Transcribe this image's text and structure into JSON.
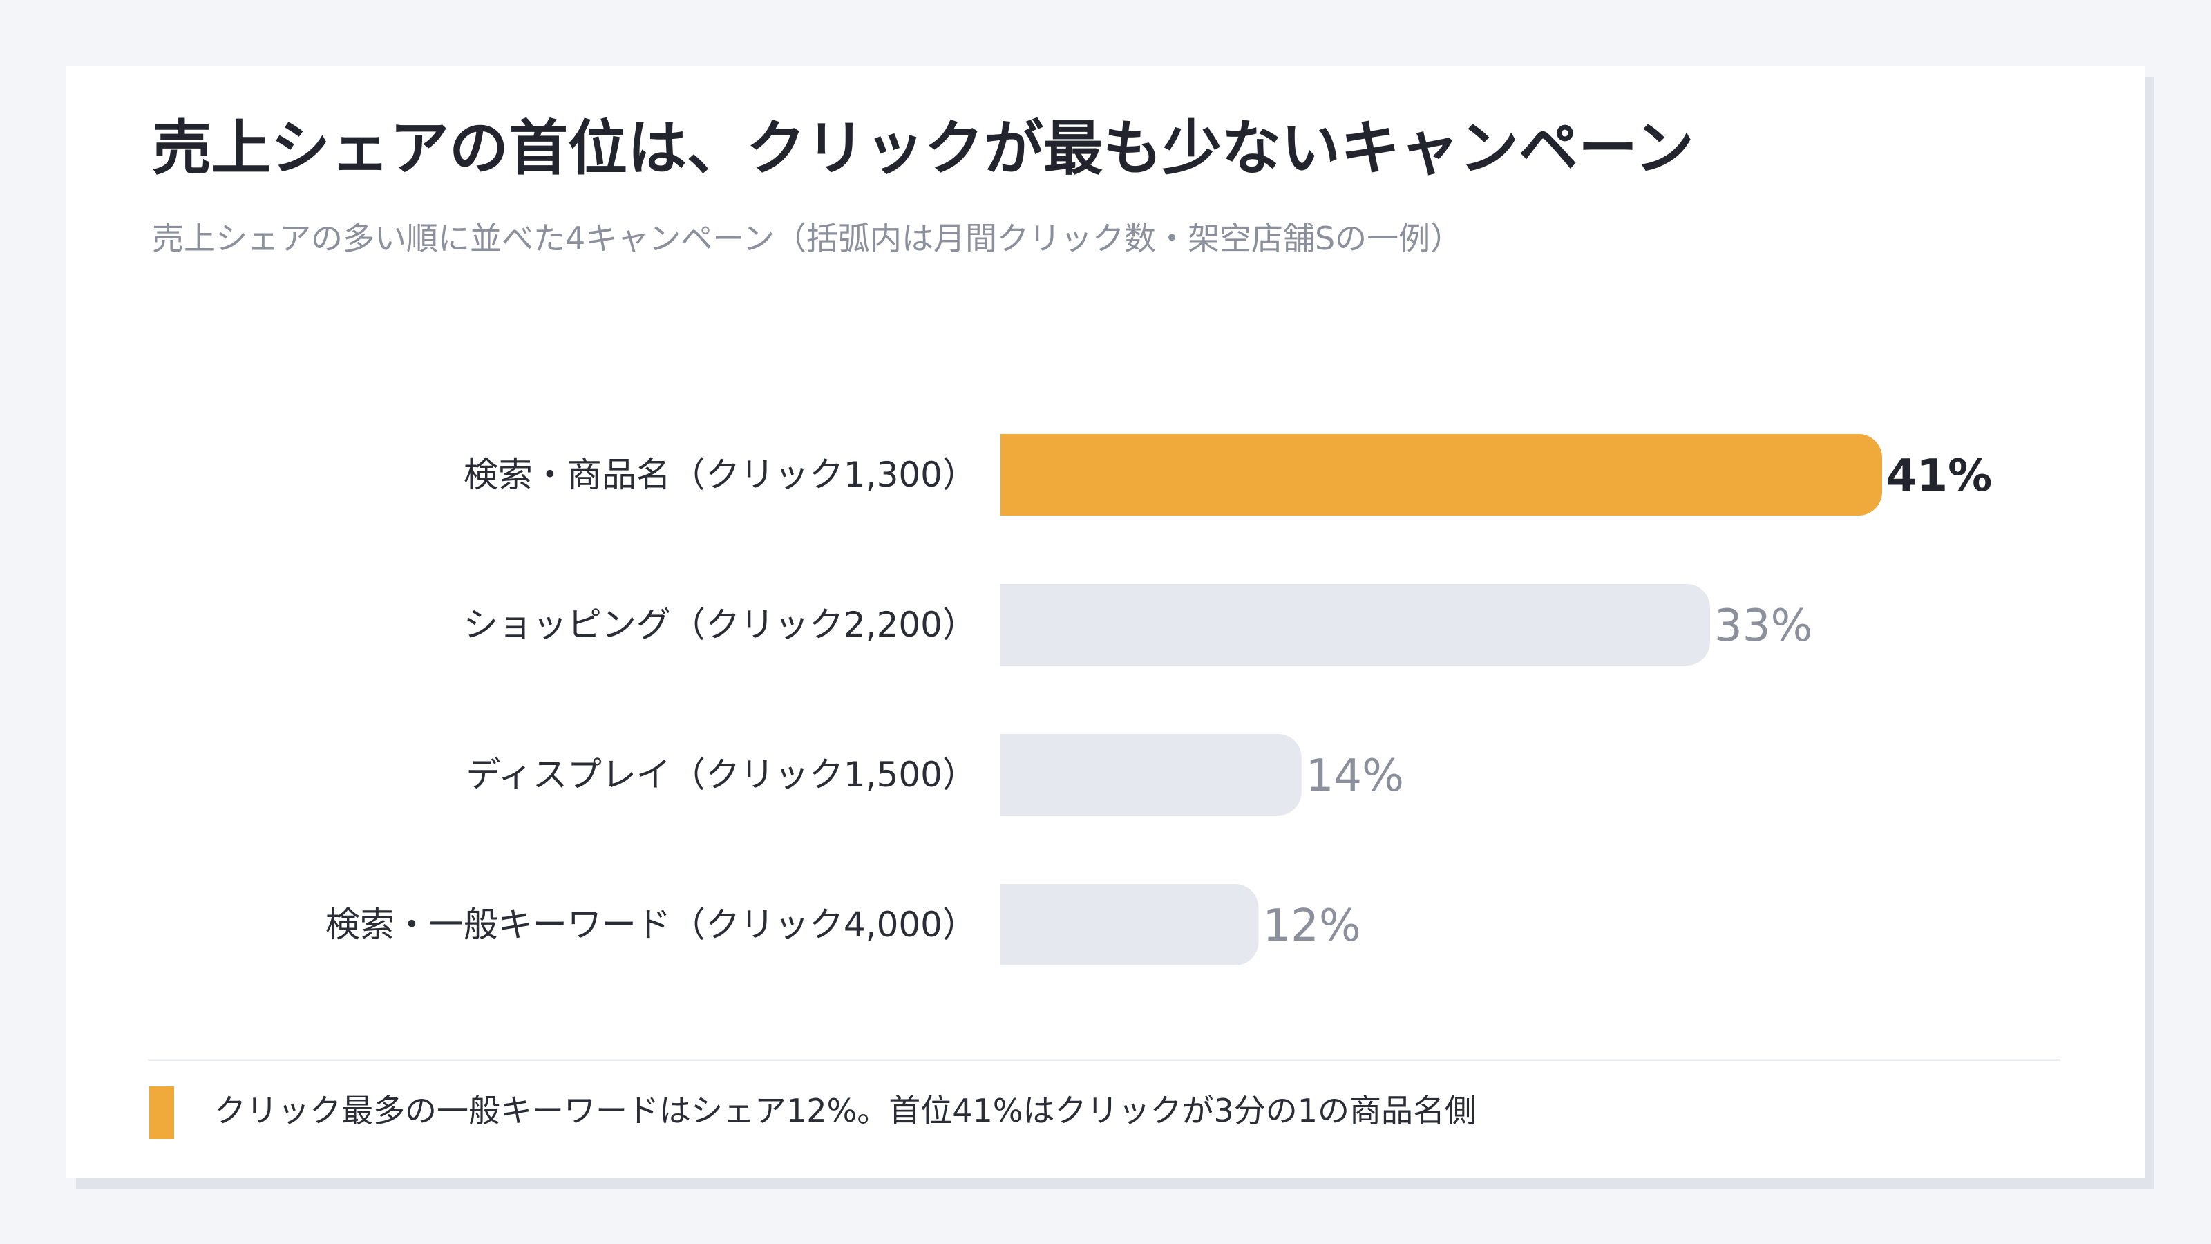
{
  "header": {
    "title": "売上シェアの首位は、クリックが最も少ないキャンペーン",
    "subtitle": "売上シェアの多い順に並べた4キャンペーン（括弧内は月間クリック数・架空店舗Sの一例）"
  },
  "colors": {
    "highlight": "#f0a93b",
    "muted": "#e6e8f0",
    "value_text": "#8b909c",
    "highlight_text": "#22252d"
  },
  "chart_data": {
    "type": "bar",
    "orientation": "horizontal",
    "categories": [
      "検索・商品名（クリック1,300）",
      "ショッピング（クリック2,200）",
      "ディスプレイ（クリック1,500）",
      "検索・一般キーワード（クリック4,000）"
    ],
    "values": [
      41,
      33,
      14,
      12
    ],
    "value_labels": [
      "41%",
      "33%",
      "14%",
      "12%"
    ],
    "highlight_index": 0,
    "xlim": [
      0,
      41
    ],
    "grid": false,
    "legend": "none"
  },
  "footer": {
    "note": "クリック最多の一般キーワードはシェア12%。首位41%はクリックが3分の1の商品名側"
  }
}
